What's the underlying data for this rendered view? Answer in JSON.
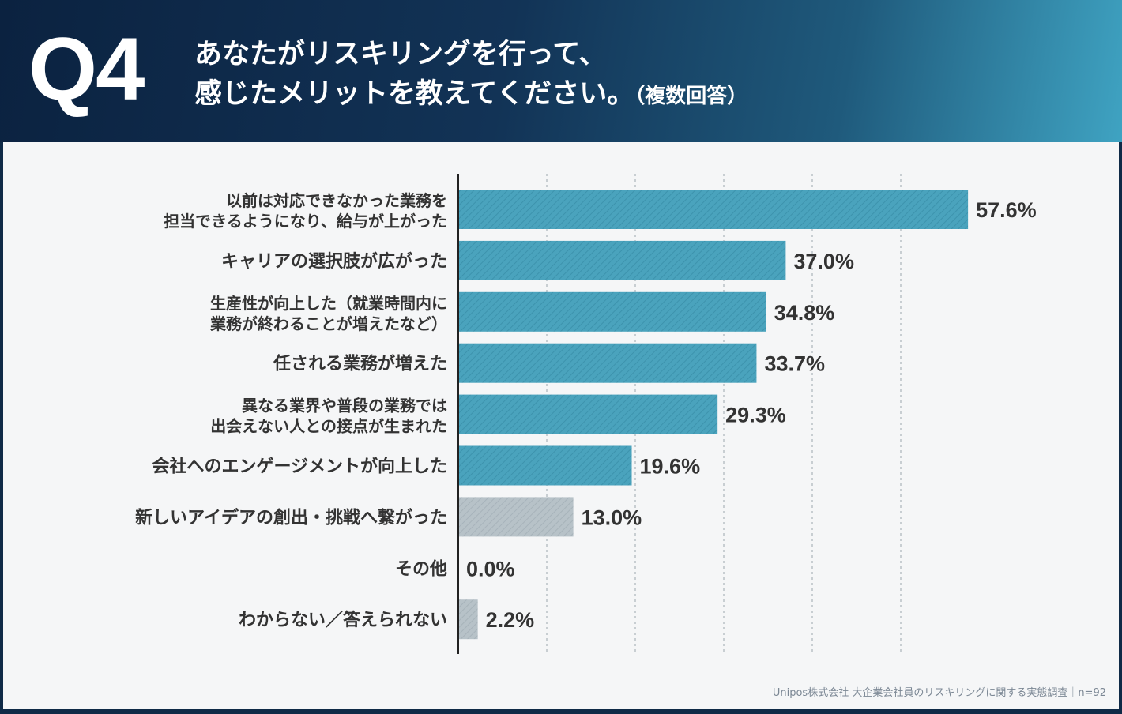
{
  "header": {
    "badge": "Q4",
    "title_line1": "あなたがリスキリングを行って、",
    "title_line2": "感じたメリットを教えてください。",
    "title_note": "（複数回答）"
  },
  "source_text": "Unipos株式会社 大企業会社員のリスキリングに関する実態調査｜n=92",
  "colors": {
    "bar_primary": "#4aa3bd",
    "bar_secondary": "#b7c2c8",
    "axis": "#222222",
    "grid": "#b9c0c6",
    "label": "#333333"
  },
  "chart_data": {
    "type": "bar",
    "orientation": "horizontal",
    "unit": "%",
    "xlim": [
      0,
      100
    ],
    "grid": true,
    "categories": [
      [
        "以前は対応できなかった業務を",
        "担当できるようになり、給与が上がった"
      ],
      [
        "キャリアの選択肢が広がった"
      ],
      [
        "生産性が向上した（就業時間内に",
        "業務が終わることが増えたなど）"
      ],
      [
        "任される業務が増えた"
      ],
      [
        "異なる業界や普段の業務では",
        "出会えない人との接点が生まれた"
      ],
      [
        "会社へのエンゲージメントが向上した"
      ],
      [
        "新しいアイデアの創出・挑戦へ繋がった"
      ],
      [
        "その他"
      ],
      [
        "わからない／答えられない"
      ]
    ],
    "values": [
      57.6,
      37.0,
      34.8,
      33.7,
      29.3,
      19.6,
      13.0,
      0.0,
      2.2
    ],
    "value_labels": [
      "57.6%",
      "37.0%",
      "34.8%",
      "33.7%",
      "29.3%",
      "19.6%",
      "13.0%",
      "0.0%",
      "2.2%"
    ],
    "highlight": [
      true,
      true,
      true,
      true,
      true,
      true,
      false,
      false,
      false
    ]
  }
}
